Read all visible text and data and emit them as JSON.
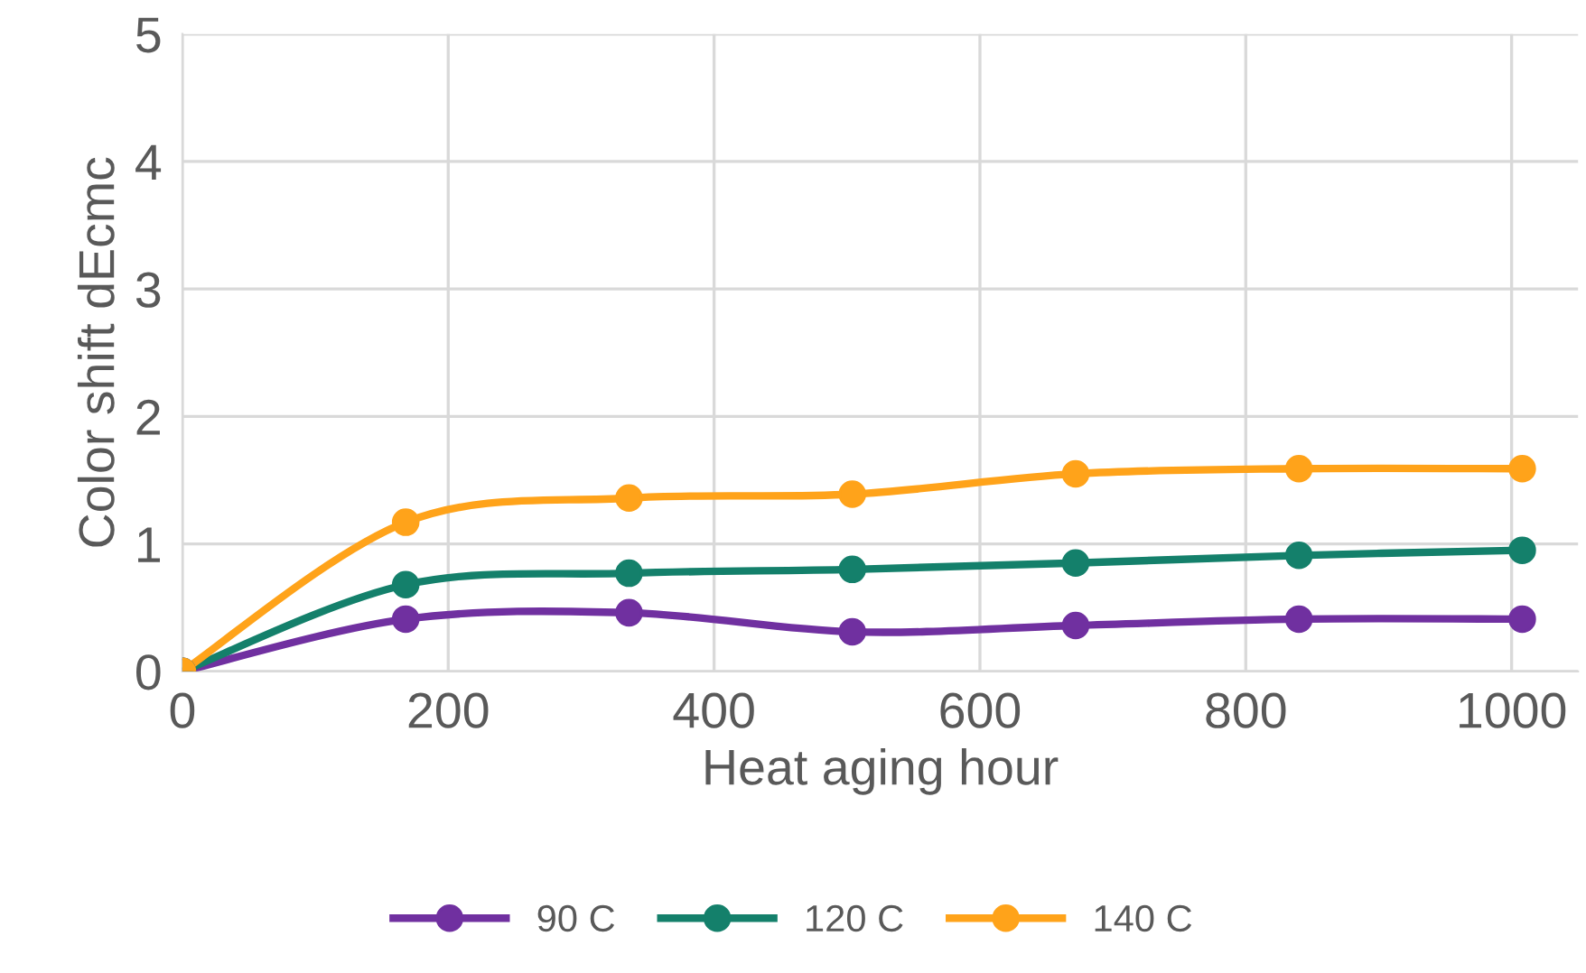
{
  "chart_data": {
    "type": "line",
    "xlabel": "Heat aging hour",
    "ylabel": "Color shift dEcmc",
    "x": [
      0,
      168,
      336,
      504,
      672,
      840,
      1008
    ],
    "series": [
      {
        "name": "90 C",
        "color": "#7030a0",
        "values": [
          0,
          0.41,
          0.46,
          0.31,
          0.36,
          0.41,
          0.41
        ]
      },
      {
        "name": "120 C",
        "color": "#14806b",
        "values": [
          0,
          0.68,
          0.77,
          0.8,
          0.85,
          0.91,
          0.95
        ]
      },
      {
        "name": "140 C",
        "color": "#ffa31a",
        "values": [
          0,
          1.17,
          1.36,
          1.39,
          1.55,
          1.59,
          1.59
        ]
      }
    ],
    "xlim": [
      0,
      1050
    ],
    "xticks": [
      0,
      200,
      400,
      600,
      800,
      1000
    ],
    "ylim": [
      0,
      5
    ],
    "yticks": [
      0,
      1,
      2,
      3,
      4,
      5
    ],
    "grid": true,
    "legend": "bottom",
    "marker": "circle",
    "line_style": "solid"
  }
}
